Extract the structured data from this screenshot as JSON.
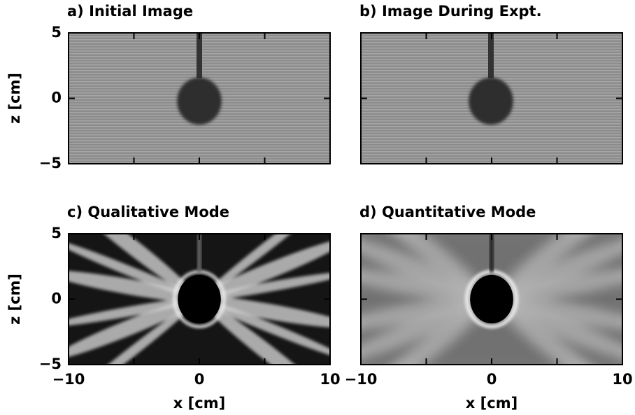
{
  "chart_data": [
    {
      "type": "image",
      "title": "a) Initial Image",
      "ylabel": "z [cm]",
      "xlim": [
        -10,
        10
      ],
      "ylim": [
        -5,
        5
      ],
      "xticks": [
        -10,
        -5,
        0,
        5,
        10
      ],
      "yticks": [
        {
          "value": -5,
          "label": "−5"
        },
        {
          "value": 0,
          "label": "0"
        },
        {
          "value": 5,
          "label": "5"
        }
      ]
    },
    {
      "type": "image",
      "title": "b) Image During Expt.",
      "xlim": [
        -10,
        10
      ],
      "ylim": [
        -5,
        5
      ],
      "xticks": [
        -10,
        -5,
        0,
        5,
        10
      ],
      "yticks": [
        -5,
        0,
        5
      ]
    },
    {
      "type": "image",
      "title": "c) Qualitative Mode",
      "ylabel": "z [cm]",
      "xlabel": "x [cm]",
      "xlim": [
        -10,
        10
      ],
      "ylim": [
        -5,
        5
      ],
      "xticks": [
        {
          "value": -10,
          "label": "−10"
        },
        -5,
        {
          "value": 0,
          "label": "0"
        },
        5,
        {
          "value": 10,
          "label": "10"
        }
      ],
      "yticks": [
        {
          "value": -5,
          "label": "−5"
        },
        {
          "value": 0,
          "label": "0"
        },
        {
          "value": 5,
          "label": "5"
        }
      ]
    },
    {
      "type": "image",
      "title": "d) Quantitative Mode",
      "xlabel": "x [cm]",
      "xlim": [
        -10,
        10
      ],
      "ylim": [
        -5,
        5
      ],
      "xticks": [
        {
          "value": -10,
          "label": "−10"
        },
        -5,
        {
          "value": 0,
          "label": "0"
        },
        5,
        {
          "value": 10,
          "label": "10"
        }
      ],
      "yticks": [
        -5,
        0,
        5
      ]
    }
  ]
}
